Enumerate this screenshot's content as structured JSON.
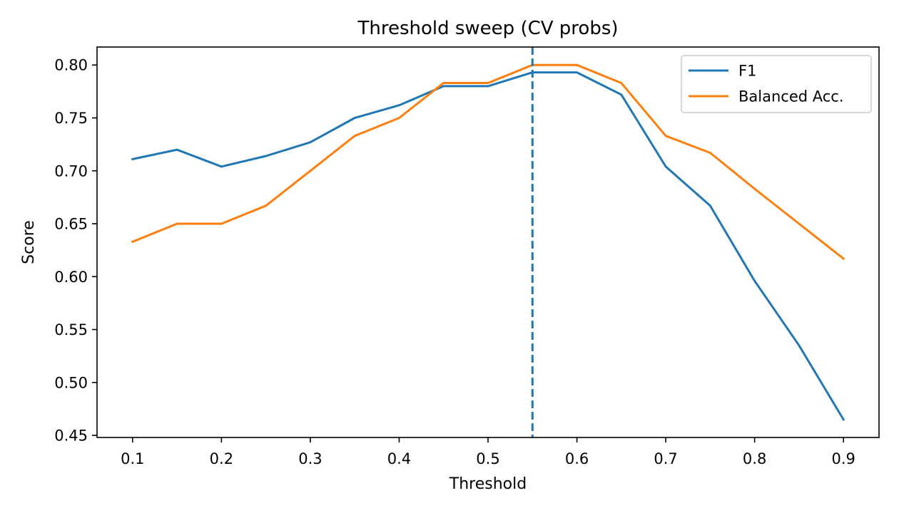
{
  "chart_data": {
    "type": "line",
    "title": "Threshold sweep (CV probs)",
    "xlabel": "Threshold",
    "ylabel": "Score",
    "xlim": [
      0.06,
      0.94
    ],
    "ylim": [
      0.448,
      0.817
    ],
    "x_ticks": [
      0.1,
      0.2,
      0.3,
      0.4,
      0.5,
      0.6,
      0.7,
      0.8,
      0.9
    ],
    "x_tick_labels": [
      "0.1",
      "0.2",
      "0.3",
      "0.4",
      "0.5",
      "0.6",
      "0.7",
      "0.8",
      "0.9"
    ],
    "y_ticks": [
      0.45,
      0.5,
      0.55,
      0.6,
      0.65,
      0.7,
      0.75,
      0.8
    ],
    "y_tick_labels": [
      "0.45",
      "0.50",
      "0.55",
      "0.60",
      "0.65",
      "0.70",
      "0.75",
      "0.80"
    ],
    "grid": false,
    "legend_position": "top-right",
    "x": [
      0.1,
      0.15,
      0.2,
      0.25,
      0.3,
      0.35,
      0.4,
      0.45,
      0.5,
      0.55,
      0.6,
      0.65,
      0.7,
      0.75,
      0.8,
      0.85,
      0.9
    ],
    "series": [
      {
        "name": "F1",
        "color": "#1f77b4",
        "values": [
          0.711,
          0.72,
          0.704,
          0.714,
          0.727,
          0.75,
          0.762,
          0.78,
          0.78,
          0.793,
          0.793,
          0.772,
          0.704,
          0.667,
          0.596,
          0.535,
          0.465
        ]
      },
      {
        "name": "Balanced Acc.",
        "color": "#ff7f0e",
        "values": [
          0.633,
          0.65,
          0.65,
          0.667,
          0.7,
          0.733,
          0.75,
          0.783,
          0.783,
          0.8,
          0.8,
          0.783,
          0.733,
          0.717,
          0.683,
          0.65,
          0.617
        ]
      }
    ],
    "vline": {
      "x": 0.55,
      "color": "#1f77b4",
      "style": "dashed"
    }
  }
}
